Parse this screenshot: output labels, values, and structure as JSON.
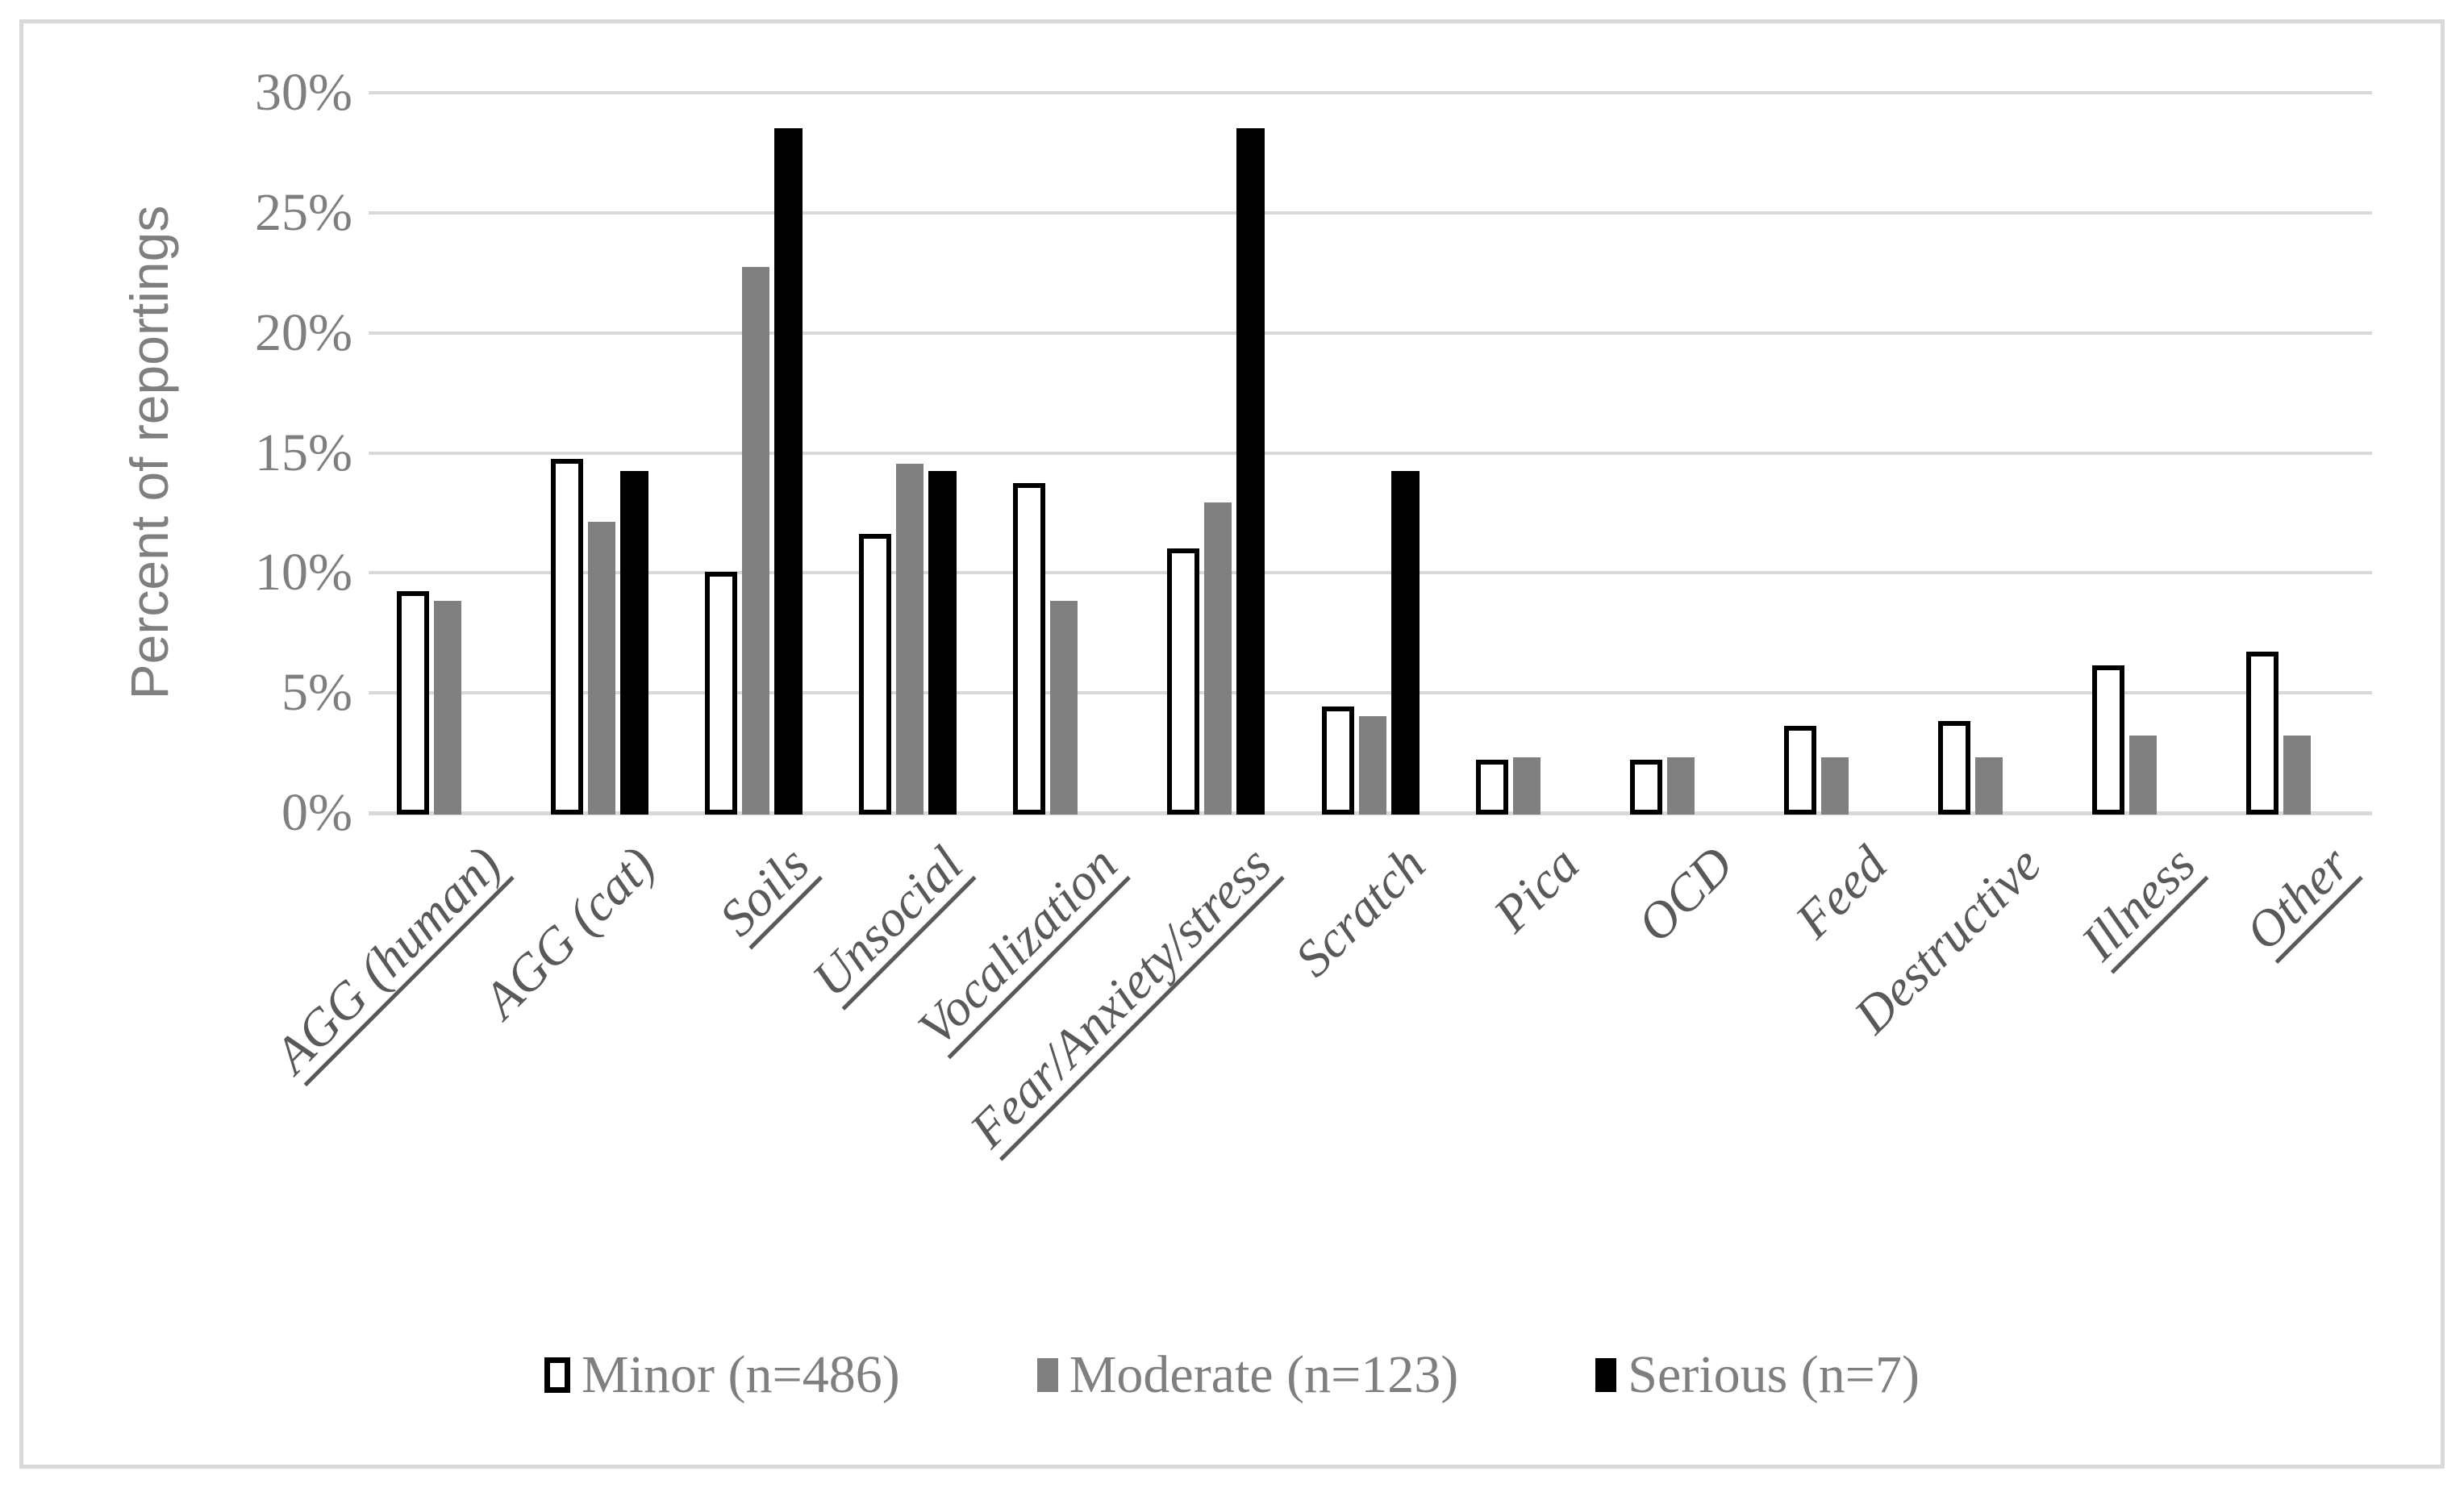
{
  "figure": {
    "ylabel": "Percent of reportings",
    "colors": {
      "gridline": "#d9d9d9",
      "figure_border": "#d9d9d9",
      "tick_text": "#7f7f7f",
      "x_label_text": "#595959",
      "legend_text": "#7f7f7f",
      "minor_fill": "#ffffff",
      "minor_border": "#000000",
      "moderate_fill": "#808080",
      "serious_fill": "#000000"
    }
  },
  "chart_data": {
    "type": "bar",
    "title": "",
    "xlabel": "",
    "ylabel": "Percent of reportings",
    "ylim": [
      0,
      30
    ],
    "ytick_step": 5,
    "yticks": [
      "0%",
      "5%",
      "10%",
      "15%",
      "20%",
      "25%",
      "30%"
    ],
    "grid": true,
    "legend_position": "bottom",
    "categories": [
      "AGG (human)",
      "AGG (cat)",
      "Soils",
      "Unsocial",
      "Vocalization",
      "Fear/Anxiety/stress",
      "Scratch",
      "Pica",
      "OCD",
      "Feed",
      "Destructive",
      "Illness",
      "Other"
    ],
    "underlined_categories": [
      "AGG (human)",
      "Soils",
      "Unsocial",
      "Vocalization",
      "Fear/Anxiety/stress",
      "Illness",
      "Other"
    ],
    "series": [
      {
        "name": "Minor (n=486)",
        "color": "#ffffff",
        "border": "#000000",
        "values": [
          9.3,
          14.8,
          10.1,
          11.7,
          13.8,
          11.1,
          4.5,
          2.3,
          2.3,
          3.7,
          3.9,
          6.2,
          6.8
        ]
      },
      {
        "name": "Moderate (n=123)",
        "color": "#808080",
        "values": [
          8.9,
          12.2,
          22.8,
          14.6,
          8.9,
          13.0,
          4.1,
          2.4,
          2.4,
          2.4,
          2.4,
          3.3,
          3.3
        ]
      },
      {
        "name": "Serious (n=7)",
        "color": "#000000",
        "values": [
          0,
          14.3,
          28.6,
          14.3,
          0,
          28.6,
          14.3,
          0,
          0,
          0,
          0,
          0,
          0
        ]
      }
    ]
  }
}
